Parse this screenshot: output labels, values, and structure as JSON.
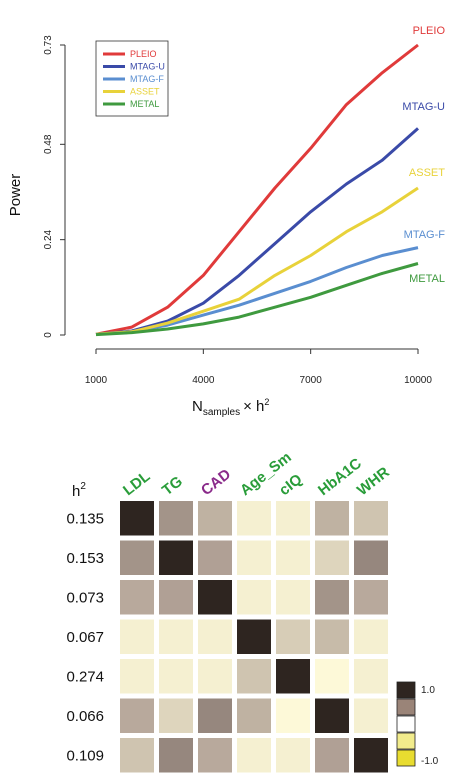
{
  "chart_data": [
    {
      "type": "line",
      "xlabel": "N",
      "xlabel_sub": "samples",
      "xlabel_suffix": "× h",
      "xlabel_sup": "2",
      "ylabel": "Power",
      "xlim": [
        1000,
        10000
      ],
      "ylim": [
        0,
        0.73
      ],
      "xticks": [
        "1000",
        "4000",
        "7000",
        "10000"
      ],
      "yticks": [
        "0",
        "0.24",
        "0.48",
        "0.73"
      ],
      "x": [
        1000,
        2000,
        3000,
        4000,
        5000,
        6000,
        7000,
        8000,
        9000,
        10000
      ],
      "legend_position": "top-left",
      "series": [
        {
          "name": "PLEIO",
          "color": "#e03a3a",
          "values": [
            0.002,
            0.02,
            0.07,
            0.15,
            0.26,
            0.37,
            0.47,
            0.58,
            0.66,
            0.73
          ]
        },
        {
          "name": "MTAG-U",
          "color": "#3a4aa8",
          "values": [
            0.002,
            0.01,
            0.035,
            0.08,
            0.15,
            0.23,
            0.31,
            0.38,
            0.44,
            0.52
          ]
        },
        {
          "name": "MTAG-F",
          "color": "#5a8ed0",
          "values": [
            0.002,
            0.008,
            0.025,
            0.05,
            0.075,
            0.105,
            0.135,
            0.17,
            0.2,
            0.22
          ]
        },
        {
          "name": "ASSET",
          "color": "#e8d23a",
          "values": [
            0.002,
            0.008,
            0.03,
            0.06,
            0.09,
            0.15,
            0.2,
            0.26,
            0.31,
            0.37
          ]
        },
        {
          "name": "METAL",
          "color": "#3f9a3f",
          "values": [
            0.001,
            0.006,
            0.015,
            0.028,
            0.045,
            0.07,
            0.095,
            0.125,
            0.155,
            0.18
          ]
        }
      ]
    },
    {
      "type": "heatmap",
      "corner_label": "h",
      "corner_sup": "2",
      "columns": [
        {
          "label": "LDL",
          "color": "#2a9d3a"
        },
        {
          "label": "TG",
          "color": "#2a9d3a"
        },
        {
          "label": "CAD",
          "color": "#8a2a8a"
        },
        {
          "label": "Age_Sm",
          "color": "#2a9d3a"
        },
        {
          "label": "cIQ",
          "color": "#2a9d3a"
        },
        {
          "label": "HbA1C",
          "color": "#2a9d3a"
        },
        {
          "label": "WHR",
          "color": "#2a9d3a"
        }
      ],
      "rows": [
        "0.135",
        "0.153",
        "0.073",
        "0.067",
        "0.274",
        "0.066",
        "0.109"
      ],
      "values": [
        [
          1.0,
          0.55,
          0.4,
          0.05,
          0.05,
          0.4,
          0.3
        ],
        [
          0.55,
          1.0,
          0.5,
          0.05,
          0.05,
          0.2,
          0.6
        ],
        [
          0.45,
          0.5,
          1.0,
          0.05,
          0.05,
          0.55,
          0.45
        ],
        [
          0.05,
          0.05,
          0.05,
          1.0,
          0.25,
          0.35,
          0.05
        ],
        [
          0.05,
          0.05,
          0.05,
          0.3,
          1.0,
          0.0,
          0.05
        ],
        [
          0.45,
          0.2,
          0.6,
          0.4,
          0.0,
          1.0,
          0.05
        ],
        [
          0.3,
          0.6,
          0.45,
          0.05,
          0.05,
          0.5,
          1.0
        ]
      ],
      "colorbar_labels": [
        "1.0",
        "-1.0"
      ],
      "colorbar_colors": [
        "#2e2520",
        "#9a8478",
        "#ffffff",
        "#f2ec8c",
        "#e8dc30"
      ],
      "colors": {
        "high": "#2e2520",
        "mid": "#b0a095",
        "low": "#fdf9d8"
      }
    }
  ]
}
